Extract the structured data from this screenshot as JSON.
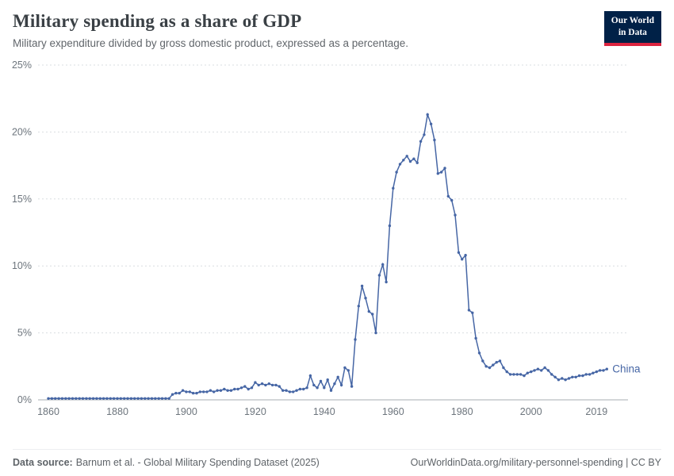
{
  "header": {
    "title": "Military spending as a share of GDP",
    "subtitle": "Military expenditure divided by gross domestic product, expressed as a percentage.",
    "logo": {
      "line1": "Our World",
      "line2": "in Data",
      "bg_color": "#002147",
      "accent_color": "#dc2440"
    }
  },
  "footer": {
    "source_label": "Data source:",
    "source_text": "Barnum et al. - Global Military Spending Dataset (2025)",
    "right_text": "OurWorldinData.org/military-personnel-spending | CC BY"
  },
  "chart_data": {
    "type": "line",
    "series_name": "China",
    "color": "#4666a5",
    "marker": "circle",
    "grid": "dashed-horizontal",
    "legend_position": "end-of-line",
    "start_year": 1860,
    "interval": "annual",
    "xlim": [
      1857,
      2024
    ],
    "ylim": [
      0,
      25
    ],
    "x_ticks": [
      1860,
      1880,
      1900,
      1920,
      1940,
      1960,
      1980,
      2000,
      2019
    ],
    "y_ticks": [
      0,
      5,
      10,
      15,
      20,
      25
    ],
    "y_tick_suffix": "%",
    "values": [
      0.1,
      0.1,
      0.1,
      0.1,
      0.1,
      0.1,
      0.1,
      0.1,
      0.1,
      0.1,
      0.1,
      0.1,
      0.1,
      0.1,
      0.1,
      0.1,
      0.1,
      0.1,
      0.1,
      0.1,
      0.1,
      0.1,
      0.1,
      0.1,
      0.1,
      0.1,
      0.1,
      0.1,
      0.1,
      0.1,
      0.1,
      0.1,
      0.1,
      0.1,
      0.1,
      0.1,
      0.4,
      0.5,
      0.5,
      0.7,
      0.6,
      0.6,
      0.5,
      0.5,
      0.6,
      0.6,
      0.6,
      0.7,
      0.6,
      0.7,
      0.7,
      0.8,
      0.7,
      0.7,
      0.8,
      0.8,
      0.9,
      1.0,
      0.8,
      0.9,
      1.3,
      1.1,
      1.2,
      1.1,
      1.2,
      1.1,
      1.1,
      1.0,
      0.7,
      0.7,
      0.6,
      0.6,
      0.7,
      0.8,
      0.8,
      0.9,
      1.8,
      1.1,
      0.9,
      1.4,
      0.9,
      1.5,
      0.7,
      1.2,
      1.7,
      1.1,
      2.4,
      2.2,
      1.0,
      4.5,
      7.0,
      8.5,
      7.6,
      6.6,
      6.4,
      5.0,
      9.3,
      10.1,
      8.8,
      13.0,
      15.8,
      17.0,
      17.6,
      17.9,
      18.2,
      17.8,
      18.0,
      17.7,
      19.3,
      19.8,
      21.3,
      20.6,
      19.4,
      16.9,
      17.0,
      17.3,
      15.2,
      14.9,
      13.8,
      11.0,
      10.5,
      10.8,
      6.7,
      6.5,
      4.6,
      3.5,
      2.9,
      2.5,
      2.4,
      2.6,
      2.8,
      2.9,
      2.4,
      2.1,
      1.9,
      1.9,
      1.9,
      1.9,
      1.8,
      2.0,
      2.1,
      2.2,
      2.3,
      2.2,
      2.4,
      2.2,
      1.9,
      1.7,
      1.5,
      1.6,
      1.5,
      1.6,
      1.7,
      1.7,
      1.8,
      1.8,
      1.9,
      1.9,
      2.0,
      2.1,
      2.2,
      2.2,
      2.3
    ]
  }
}
